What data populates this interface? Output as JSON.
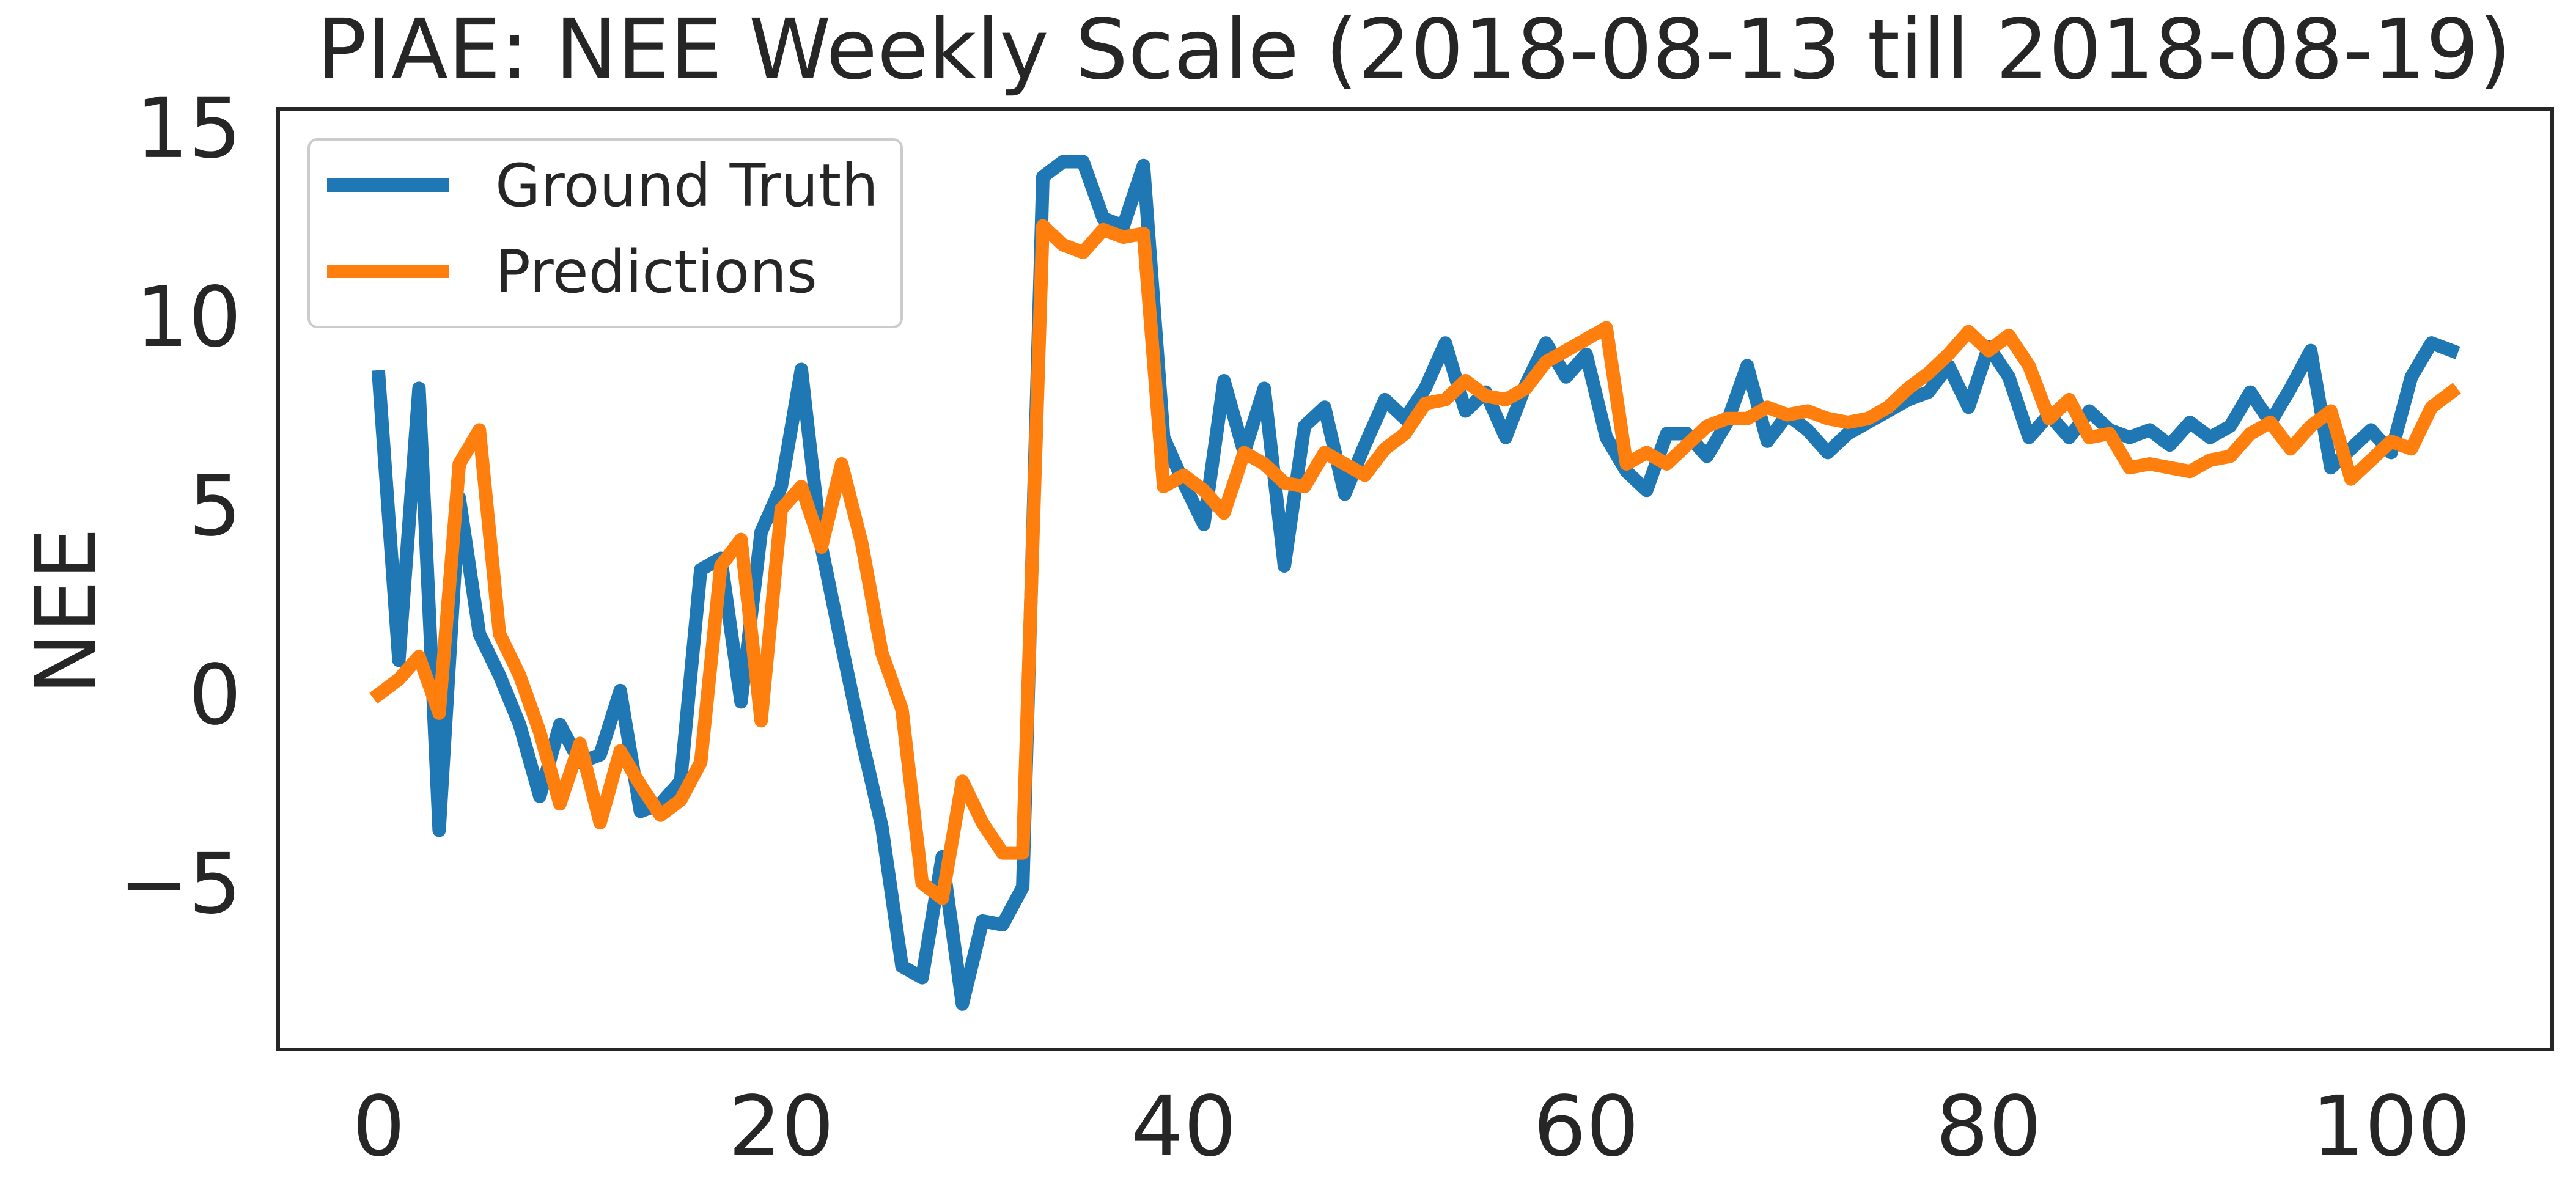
{
  "chart_data": {
    "type": "line",
    "title": "PIAE: NEE Weekly Scale (2018-08-13 till 2018-08-19)",
    "xlabel": "",
    "ylabel": "NEE",
    "xlim": [
      -5,
      108
    ],
    "ylim": [
      -9.4,
      15.5
    ],
    "x_ticks": [
      0,
      20,
      40,
      60,
      80,
      100
    ],
    "y_ticks": [
      -5,
      0,
      5,
      10,
      15
    ],
    "y_tick_labels": [
      "−5",
      "0",
      "5",
      "10",
      "15"
    ],
    "grid": false,
    "legend_position": "upper-left",
    "x": [
      0,
      1,
      2,
      3,
      4,
      5,
      6,
      7,
      8,
      9,
      10,
      11,
      12,
      13,
      14,
      15,
      16,
      17,
      18,
      19,
      20,
      21,
      22,
      23,
      24,
      25,
      26,
      27,
      28,
      29,
      30,
      31,
      32,
      33,
      34,
      35,
      36,
      37,
      38,
      39,
      40,
      41,
      42,
      43,
      44,
      45,
      46,
      47,
      48,
      49,
      50,
      51,
      52,
      53,
      54,
      55,
      56,
      57,
      58,
      59,
      60,
      61,
      62,
      63,
      64,
      65,
      66,
      67,
      68,
      69,
      70,
      71,
      72,
      73,
      74,
      75,
      76,
      77,
      78,
      79,
      80,
      81,
      82,
      83,
      84,
      85,
      86,
      87,
      88,
      89,
      90,
      91,
      92,
      93,
      94,
      95,
      96,
      97,
      98,
      99,
      100,
      101,
      102,
      103
    ],
    "series": [
      {
        "name": "Ground Truth",
        "color": "#1f77b4",
        "values": [
          8.4,
          0.9,
          8.1,
          -3.6,
          5.2,
          1.6,
          0.5,
          -0.8,
          -2.7,
          -0.8,
          -1.8,
          -1.6,
          0.1,
          -3.1,
          -2.9,
          -2.3,
          3.3,
          3.6,
          -0.2,
          4.3,
          5.5,
          8.6,
          3.9,
          1.3,
          -1.2,
          -3.5,
          -7.2,
          -7.5,
          -4.3,
          -8.2,
          -6.0,
          -6.1,
          -5.1,
          13.7,
          14.1,
          14.1,
          12.6,
          12.4,
          14.0,
          6.8,
          5.6,
          4.5,
          8.3,
          6.4,
          8.1,
          3.4,
          7.1,
          7.6,
          5.3,
          6.6,
          7.8,
          7.3,
          8.1,
          9.3,
          7.5,
          8.0,
          6.8,
          8.2,
          9.3,
          8.4,
          9.0,
          6.8,
          5.9,
          5.4,
          6.9,
          6.9,
          6.3,
          7.2,
          8.7,
          6.7,
          7.4,
          7.0,
          6.4,
          6.9,
          7.2,
          7.5,
          7.8,
          8.0,
          8.7,
          7.6,
          9.2,
          8.4,
          6.8,
          7.4,
          6.8,
          7.5,
          7.0,
          6.8,
          7.0,
          6.6,
          7.2,
          6.8,
          7.1,
          8.0,
          7.2,
          8.1,
          9.1,
          6.0,
          6.5,
          7.0,
          6.4,
          8.4,
          9.3,
          9.1
        ]
      },
      {
        "name": "Predictions",
        "color": "#ff7f0e",
        "values": [
          0.0,
          0.4,
          1.0,
          -0.5,
          6.1,
          7.0,
          1.6,
          0.5,
          -1.0,
          -2.9,
          -1.3,
          -3.4,
          -1.5,
          -2.4,
          -3.2,
          -2.8,
          -1.8,
          3.4,
          4.1,
          -0.7,
          4.9,
          5.5,
          3.9,
          6.1,
          4.0,
          1.1,
          -0.4,
          -5.0,
          -5.4,
          -2.3,
          -3.4,
          -4.2,
          -4.2,
          12.4,
          11.9,
          11.7,
          12.3,
          12.1,
          12.2,
          5.5,
          5.8,
          5.4,
          4.8,
          6.4,
          6.1,
          5.6,
          5.5,
          6.4,
          6.1,
          5.8,
          6.5,
          6.9,
          7.7,
          7.8,
          8.3,
          7.9,
          7.8,
          8.1,
          8.8,
          9.1,
          9.4,
          9.7,
          6.1,
          6.4,
          6.1,
          6.6,
          7.1,
          7.3,
          7.3,
          7.6,
          7.4,
          7.5,
          7.3,
          7.2,
          7.3,
          7.6,
          8.1,
          8.5,
          9.0,
          9.6,
          9.1,
          9.5,
          8.7,
          7.3,
          7.8,
          6.8,
          6.9,
          6.0,
          6.1,
          6.0,
          5.9,
          6.2,
          6.3,
          6.9,
          7.2,
          6.5,
          7.1,
          7.5,
          5.7,
          6.2,
          6.7,
          6.5,
          7.6,
          8.0
        ]
      }
    ]
  }
}
